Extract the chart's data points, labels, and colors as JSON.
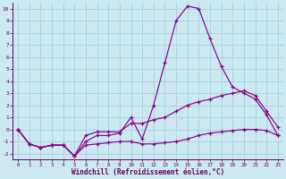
{
  "xlabel": "Windchill (Refroidissement éolien,°C)",
  "bg_color": "#cce8f0",
  "line_color": "#880088",
  "grid_color": "#99ccdd",
  "x_data": [
    0,
    1,
    2,
    3,
    4,
    5,
    6,
    7,
    8,
    9,
    10,
    11,
    12,
    13,
    14,
    15,
    16,
    17,
    18,
    19,
    20,
    21,
    22,
    23
  ],
  "series1": [
    0.0,
    -1.2,
    -1.5,
    -1.3,
    -1.3,
    -2.2,
    -1.0,
    -0.5,
    -0.5,
    -0.3,
    1.0,
    -0.8,
    2.0,
    5.5,
    9.0,
    10.2,
    10.0,
    7.5,
    5.2,
    3.5,
    3.0,
    2.5,
    1.2,
    -0.5
  ],
  "series2": [
    0.0,
    -1.2,
    -1.5,
    -1.3,
    -1.3,
    -2.2,
    -0.5,
    -0.2,
    -0.2,
    -0.2,
    0.5,
    0.5,
    0.8,
    1.0,
    1.5,
    2.0,
    2.3,
    2.5,
    2.8,
    3.0,
    3.2,
    2.8,
    1.5,
    0.2
  ],
  "series3": [
    0.0,
    -1.2,
    -1.5,
    -1.3,
    -1.3,
    -2.2,
    -1.3,
    -1.2,
    -1.1,
    -1.0,
    -1.0,
    -1.2,
    -1.2,
    -1.1,
    -1.0,
    -0.8,
    -0.5,
    -0.3,
    -0.2,
    -0.1,
    0.0,
    0.0,
    -0.1,
    -0.5
  ],
  "ylim": [
    -2.5,
    10.5
  ],
  "xlim": [
    -0.5,
    23.5
  ],
  "yticks": [
    -2,
    -1,
    0,
    1,
    2,
    3,
    4,
    5,
    6,
    7,
    8,
    9,
    10
  ]
}
